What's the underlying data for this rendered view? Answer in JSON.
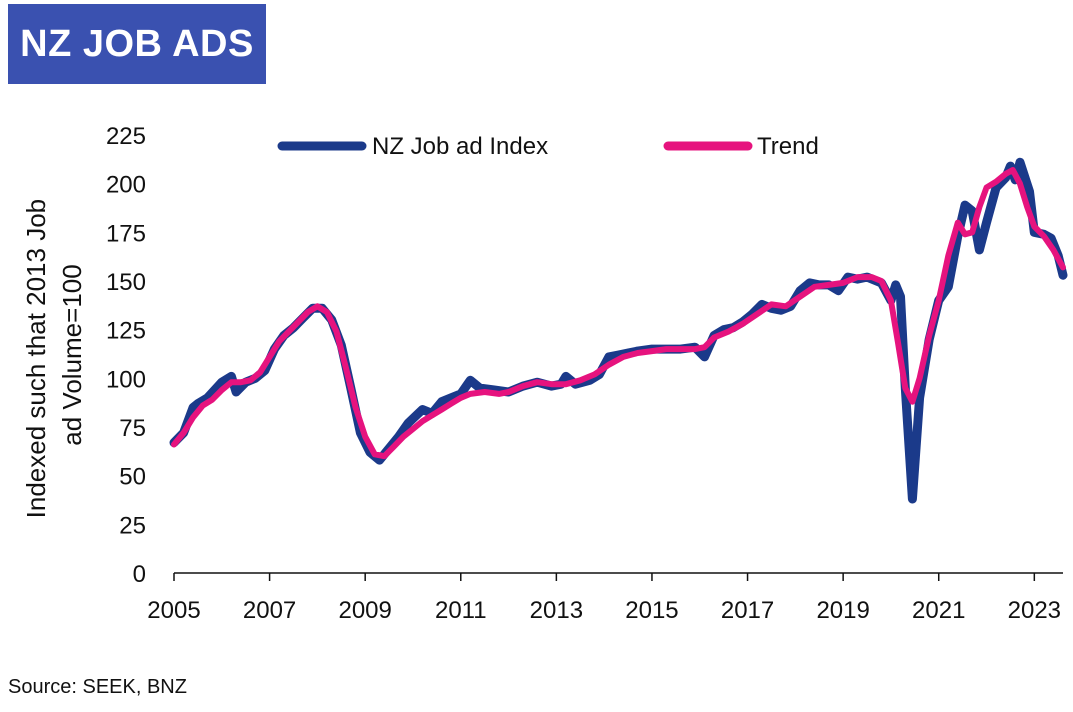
{
  "header": {
    "title": "NZ JOB ADS"
  },
  "footer": {
    "source": "Source: SEEK, BNZ"
  },
  "colors": {
    "title_bg": "#3a51b0",
    "index_series": "#1b3a8a",
    "trend_series": "#e6137e",
    "axis": "#111111"
  },
  "chart_data": {
    "type": "line",
    "title": "",
    "xlabel": "",
    "ylabel": "Indexed such that 2013 Job ad Volume=100",
    "ylim": [
      0,
      225
    ],
    "yticks": [
      0,
      25,
      50,
      75,
      100,
      125,
      150,
      175,
      200,
      225
    ],
    "xlim": [
      2005,
      2023.6
    ],
    "xticks": [
      2005,
      2007,
      2009,
      2011,
      2013,
      2015,
      2017,
      2019,
      2021,
      2023
    ],
    "grid": false,
    "legend": "top",
    "series": [
      {
        "name": "NZ Job ad Index",
        "color": "#1b3a8a",
        "x": [
          2005.0,
          2005.2,
          2005.4,
          2005.5,
          2005.7,
          2006.0,
          2006.2,
          2006.3,
          2006.5,
          2006.7,
          2006.9,
          2007.1,
          2007.3,
          2007.5,
          2007.7,
          2007.9,
          2008.1,
          2008.3,
          2008.5,
          2008.7,
          2008.9,
          2009.1,
          2009.3,
          2009.5,
          2009.7,
          2009.9,
          2010.2,
          2010.4,
          2010.6,
          2010.8,
          2011.0,
          2011.2,
          2011.4,
          2011.7,
          2012.0,
          2012.3,
          2012.6,
          2012.9,
          2013.1,
          2013.2,
          2013.4,
          2013.7,
          2013.9,
          2014.1,
          2014.3,
          2014.5,
          2014.7,
          2015.0,
          2015.3,
          2015.6,
          2015.9,
          2016.1,
          2016.3,
          2016.5,
          2016.7,
          2016.9,
          2017.1,
          2017.3,
          2017.5,
          2017.7,
          2017.9,
          2018.1,
          2018.3,
          2018.5,
          2018.7,
          2018.9,
          2019.1,
          2019.3,
          2019.5,
          2019.8,
          2020.0,
          2020.1,
          2020.2,
          2020.3,
          2020.45,
          2020.6,
          2020.8,
          2021.0,
          2021.2,
          2021.4,
          2021.55,
          2021.7,
          2021.85,
          2022.0,
          2022.2,
          2022.4,
          2022.5,
          2022.6,
          2022.7,
          2022.9,
          2023.0,
          2023.2,
          2023.35,
          2023.5,
          2023.6
        ],
        "values": [
          67,
          72,
          85,
          87,
          90,
          98,
          101,
          93,
          98,
          100,
          104,
          115,
          122,
          126,
          131,
          136,
          136,
          130,
          117,
          95,
          72,
          62,
          58,
          64,
          70,
          77,
          84,
          82,
          88,
          90,
          92,
          99,
          95,
          94,
          93,
          96,
          98,
          96,
          97,
          101,
          97,
          99,
          102,
          111,
          112,
          113,
          114,
          115,
          115,
          115,
          116,
          111,
          122,
          125,
          126,
          129,
          133,
          138,
          136,
          135,
          137,
          145,
          149,
          148,
          148,
          145,
          152,
          151,
          152,
          149,
          140,
          148,
          142,
          95,
          38,
          90,
          120,
          140,
          147,
          173,
          189,
          186,
          166,
          180,
          198,
          203,
          209,
          202,
          211,
          196,
          175,
          174,
          172,
          163,
          153
        ]
      },
      {
        "name": "Trend",
        "color": "#e6137e",
        "x": [
          2005.0,
          2005.2,
          2005.4,
          2005.6,
          2005.8,
          2006.0,
          2006.2,
          2006.4,
          2006.6,
          2006.8,
          2007.0,
          2007.2,
          2007.4,
          2007.6,
          2007.8,
          2008.0,
          2008.2,
          2008.4,
          2008.6,
          2008.8,
          2009.0,
          2009.2,
          2009.4,
          2009.6,
          2009.8,
          2010.0,
          2010.2,
          2010.4,
          2010.6,
          2010.8,
          2011.0,
          2011.2,
          2011.5,
          2011.8,
          2012.0,
          2012.3,
          2012.6,
          2012.9,
          2013.2,
          2013.5,
          2013.8,
          2014.1,
          2014.4,
          2014.7,
          2015.0,
          2015.3,
          2015.6,
          2015.9,
          2016.1,
          2016.3,
          2016.6,
          2016.9,
          2017.2,
          2017.5,
          2017.8,
          2018.1,
          2018.4,
          2018.7,
          2019.0,
          2019.3,
          2019.6,
          2019.8,
          2020.0,
          2020.15,
          2020.3,
          2020.45,
          2020.6,
          2020.8,
          2021.0,
          2021.2,
          2021.4,
          2021.55,
          2021.7,
          2021.85,
          2022.0,
          2022.2,
          2022.4,
          2022.55,
          2022.7,
          2022.85,
          2023.0,
          2023.2,
          2023.4,
          2023.6
        ],
        "values": [
          66,
          72,
          80,
          86,
          89,
          94,
          98,
          98,
          99,
          103,
          111,
          119,
          124,
          129,
          134,
          137,
          134,
          124,
          105,
          85,
          70,
          61,
          60,
          65,
          70,
          74,
          78,
          81,
          84,
          87,
          90,
          92,
          93,
          92,
          93,
          96,
          98,
          97,
          97,
          99,
          102,
          107,
          111,
          113,
          114,
          115,
          115,
          115,
          116,
          121,
          124,
          128,
          133,
          138,
          137,
          142,
          147,
          148,
          149,
          152,
          152,
          150,
          140,
          118,
          95,
          88,
          100,
          122,
          140,
          163,
          180,
          174,
          175,
          188,
          198,
          201,
          205,
          207,
          200,
          188,
          178,
          173,
          166,
          157
        ]
      }
    ]
  }
}
